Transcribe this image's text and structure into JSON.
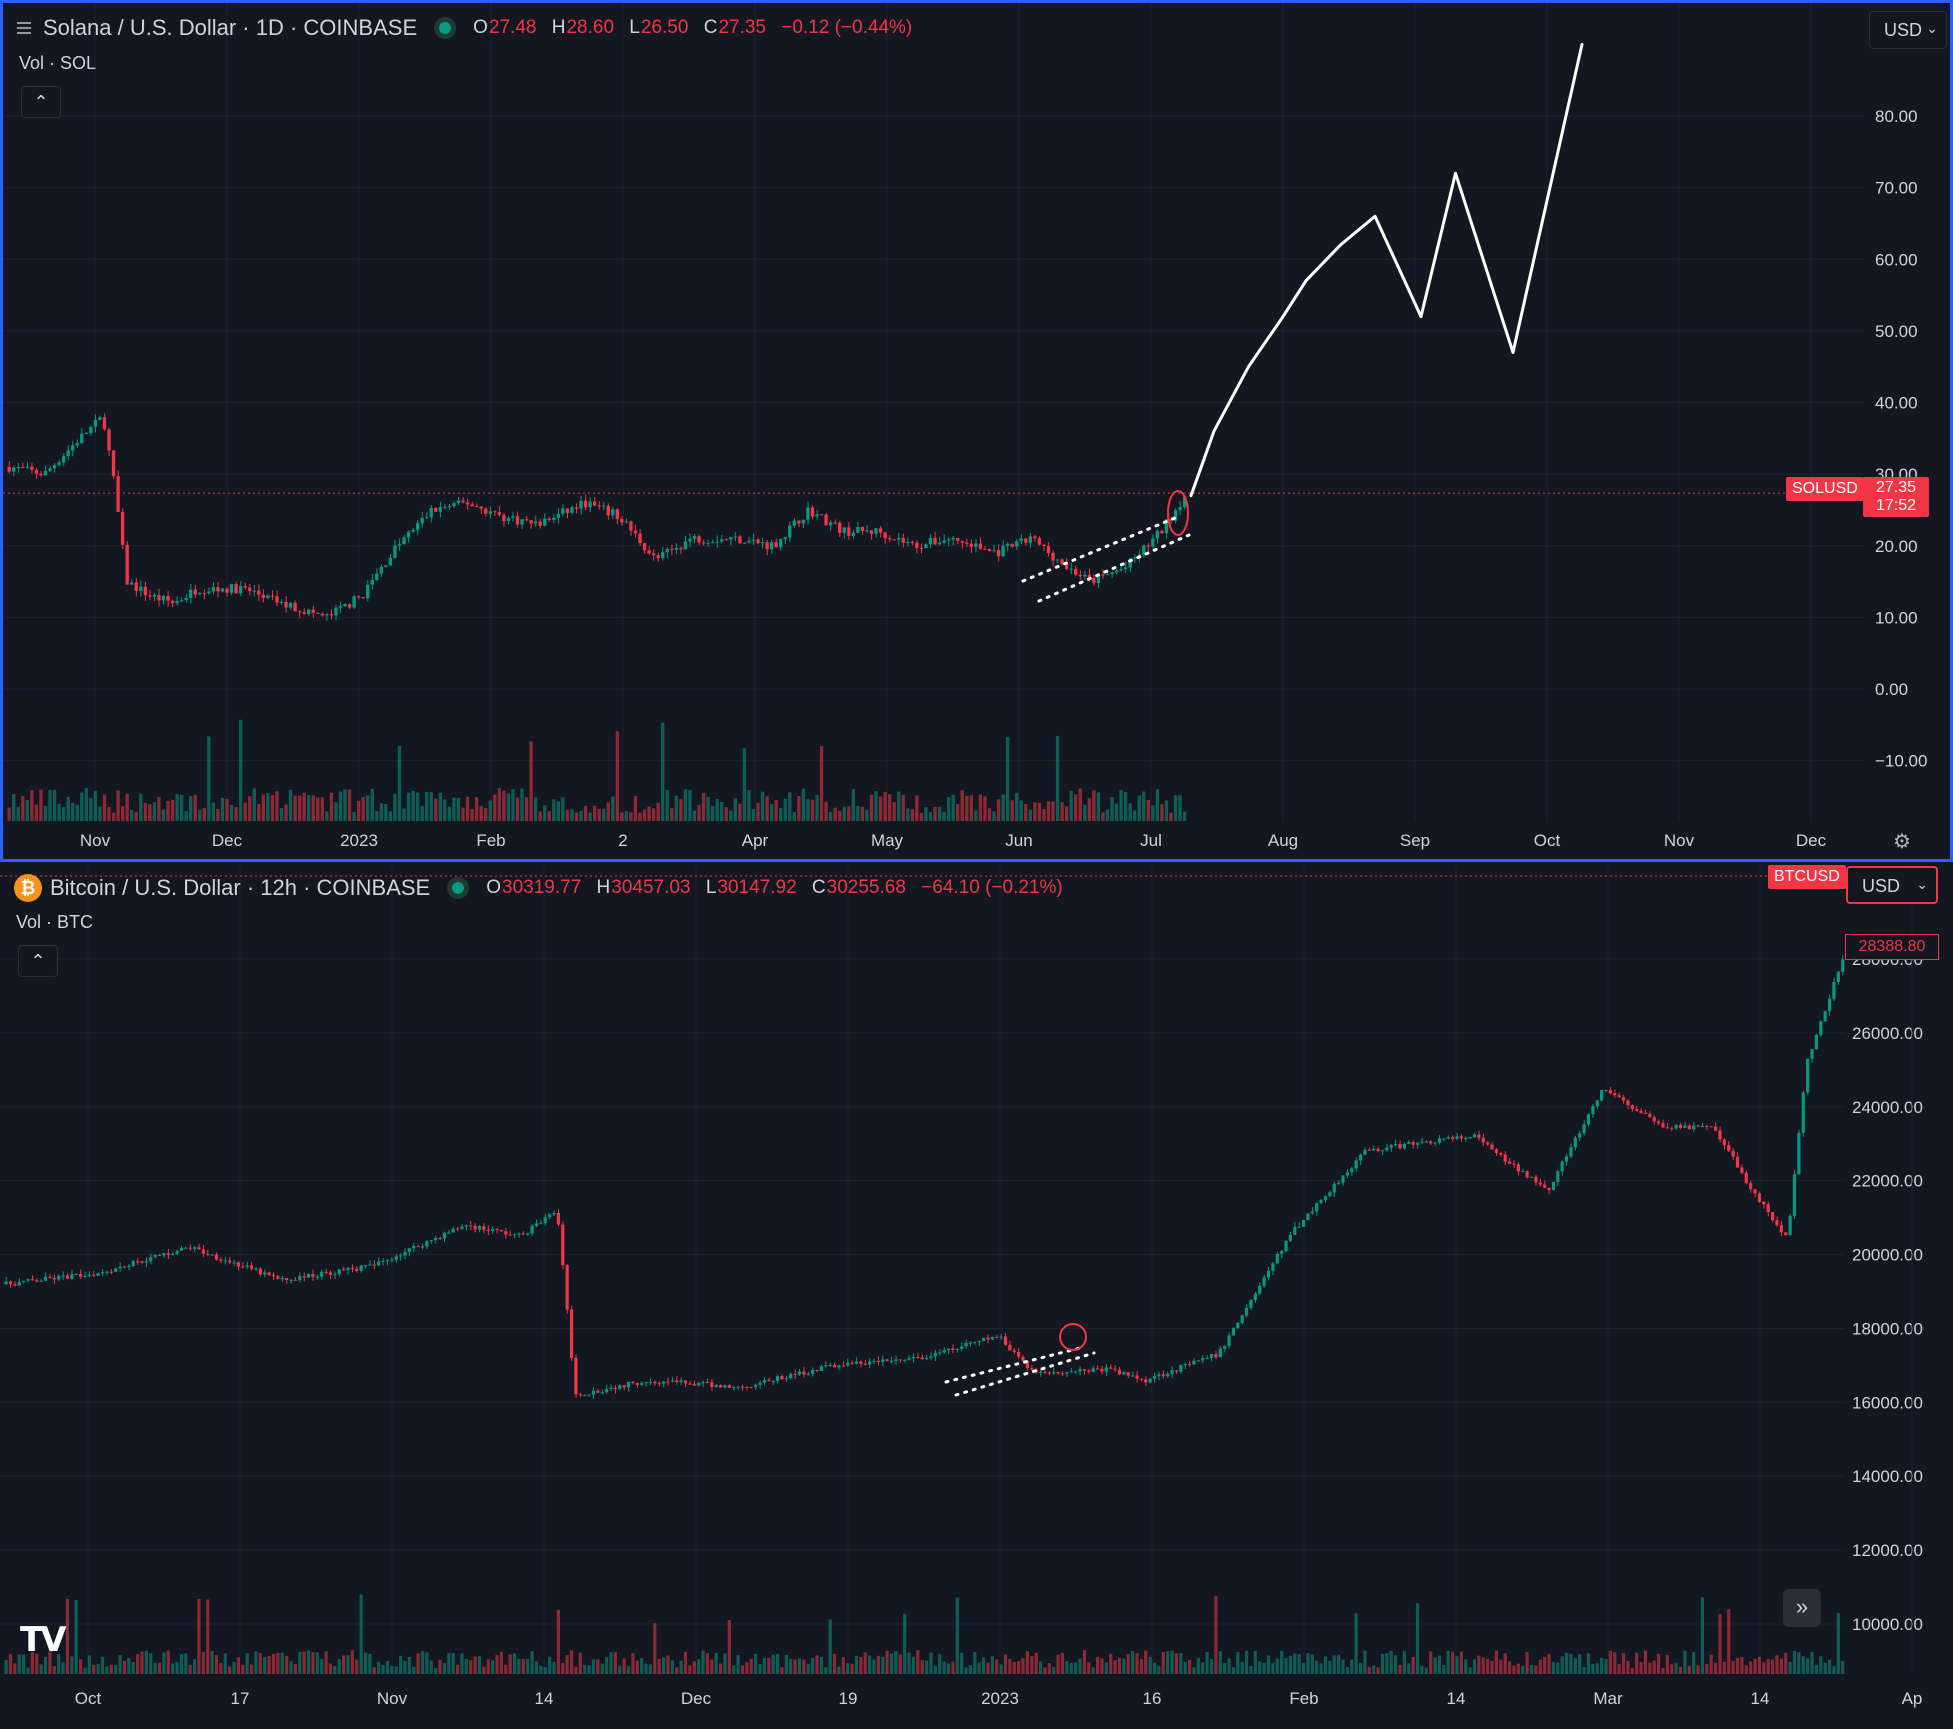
{
  "colors": {
    "up": "#089981",
    "down": "#f23645",
    "background": "#131722",
    "grid": "#1e222d",
    "text": "#d1d4dc",
    "active_border": "#2962ff",
    "drawing": "#ffffff",
    "price_tag": "#f23645"
  },
  "solana": {
    "title": "Solana / U.S. Dollar · 1D · COINBASE",
    "menu_icon": "hamburger-icon",
    "ohlc": {
      "o": "27.48",
      "h": "28.60",
      "l": "26.50",
      "c": "27.35",
      "change": "−0.12 (−0.44%)"
    },
    "vol_label": "Vol · SOL",
    "collapse_icon": "chevron-up-icon",
    "currency": "USD",
    "symbol_tag": "SOLUSD",
    "last_price": "27.35",
    "countdown": "17:52",
    "settings_icon": "gear-icon"
  },
  "bitcoin": {
    "title": "Bitcoin / U.S. Dollar · 12h · COINBASE",
    "coin_icon": "bitcoin-icon",
    "coin_glyph": "₿",
    "ohlc": {
      "o": "30319.77",
      "h": "30457.03",
      "l": "30147.92",
      "c": "30255.68",
      "change": "−64.10 (−0.21%)"
    },
    "vol_label": "Vol · BTC",
    "collapse_icon": "chevron-up-icon",
    "currency": "USD",
    "symbol_tag": "BTCUSD",
    "last_price": "28388.80",
    "scroll_icon": "double-chevron-right-icon",
    "logo": "TV"
  },
  "chart_data": [
    {
      "type": "candlestick",
      "symbol": "SOLUSD",
      "y_ticks": [
        "80.00",
        "70.00",
        "60.00",
        "50.00",
        "40.00",
        "30.00",
        "20.00",
        "10.00",
        "0.00",
        "−10.00"
      ],
      "ylim": [
        -18,
        92
      ],
      "x_ticks": [
        "Nov",
        "Dec",
        "2023",
        "Feb",
        "2",
        "Apr",
        "May",
        "Jun",
        "Jul",
        "Aug",
        "Sep",
        "Oct",
        "Nov",
        "Dec"
      ],
      "price_path": [
        [
          0,
          31
        ],
        [
          0.03,
          30
        ],
        [
          0.06,
          35
        ],
        [
          0.08,
          38
        ],
        [
          0.09,
          28
        ],
        [
          0.1,
          15
        ],
        [
          0.12,
          13
        ],
        [
          0.14,
          12
        ],
        [
          0.16,
          14
        ],
        [
          0.2,
          14
        ],
        [
          0.23,
          12
        ],
        [
          0.27,
          10
        ],
        [
          0.3,
          13
        ],
        [
          0.33,
          20
        ],
        [
          0.36,
          25
        ],
        [
          0.39,
          26
        ],
        [
          0.42,
          24
        ],
        [
          0.45,
          23
        ],
        [
          0.49,
          26
        ],
        [
          0.52,
          24
        ],
        [
          0.55,
          18
        ],
        [
          0.58,
          21
        ],
        [
          0.62,
          21
        ],
        [
          0.65,
          20
        ],
        [
          0.68,
          25
        ],
        [
          0.71,
          22
        ],
        [
          0.74,
          22
        ],
        [
          0.77,
          20
        ],
        [
          0.8,
          21
        ],
        [
          0.84,
          19
        ],
        [
          0.87,
          21
        ],
        [
          0.9,
          17
        ],
        [
          0.92,
          15
        ],
        [
          0.95,
          17
        ],
        [
          0.98,
          22
        ],
        [
          1.0,
          27
        ]
      ],
      "volume_profile": "spikes near Nov and 2023",
      "drawing_projection": [
        [
          0,
          27
        ],
        [
          0.2,
          36
        ],
        [
          0.5,
          45
        ],
        [
          0.8,
          52
        ],
        [
          1.0,
          57
        ],
        [
          1.3,
          62
        ],
        [
          1.6,
          66
        ],
        [
          2.0,
          52
        ],
        [
          2.3,
          72
        ],
        [
          2.8,
          47
        ],
        [
          3.4,
          90
        ]
      ]
    },
    {
      "type": "candlestick",
      "symbol": "BTCUSD",
      "y_ticks": [
        "28000.00",
        "26000.00",
        "24000.00",
        "22000.00",
        "20000.00",
        "18000.00",
        "16000.00",
        "14000.00",
        "12000.00",
        "10000.00"
      ],
      "ylim": [
        8900,
        29500
      ],
      "x_ticks": [
        "Oct",
        "17",
        "Nov",
        "14",
        "Dec",
        "19",
        "2023",
        "16",
        "Feb",
        "14",
        "Mar",
        "14",
        "Ap"
      ],
      "price_path": [
        [
          0,
          19200
        ],
        [
          0.05,
          19500
        ],
        [
          0.1,
          20200
        ],
        [
          0.15,
          19300
        ],
        [
          0.2,
          19700
        ],
        [
          0.25,
          20800
        ],
        [
          0.28,
          20500
        ],
        [
          0.3,
          21200
        ],
        [
          0.31,
          16200
        ],
        [
          0.35,
          16600
        ],
        [
          0.4,
          16400
        ],
        [
          0.45,
          17000
        ],
        [
          0.5,
          17200
        ],
        [
          0.54,
          17800
        ],
        [
          0.56,
          16800
        ],
        [
          0.6,
          16900
        ],
        [
          0.62,
          16600
        ],
        [
          0.66,
          17300
        ],
        [
          0.7,
          20600
        ],
        [
          0.74,
          22800
        ],
        [
          0.78,
          23100
        ],
        [
          0.8,
          23200
        ],
        [
          0.82,
          22400
        ],
        [
          0.84,
          21800
        ],
        [
          0.87,
          24500
        ],
        [
          0.9,
          23500
        ],
        [
          0.93,
          23400
        ],
        [
          0.95,
          21800
        ],
        [
          0.97,
          20400
        ],
        [
          0.98,
          25100
        ],
        [
          1.0,
          28000
        ]
      ]
    }
  ]
}
